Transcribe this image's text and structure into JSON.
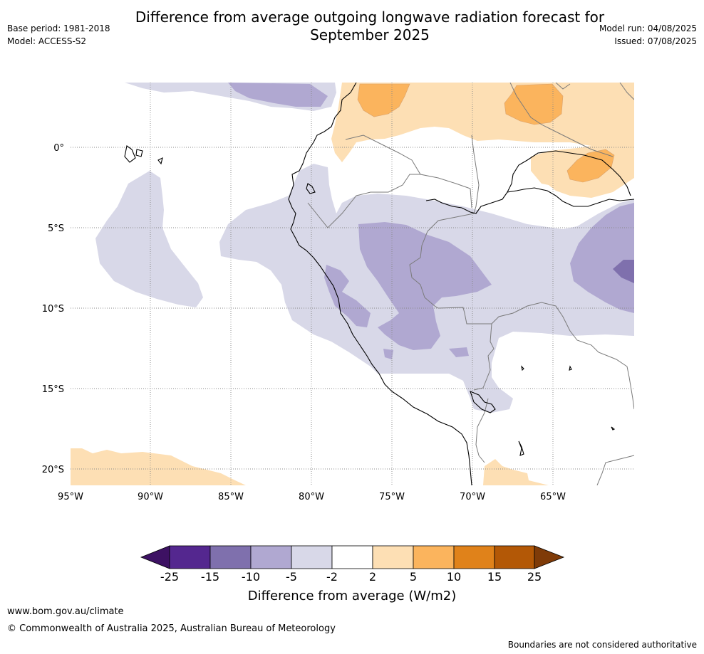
{
  "title_line1": "Difference from average outgoing longwave radiation forecast for",
  "title_line2": "September 2025",
  "base_period": "Base period: 1981-2018",
  "model": "Model: ACCESS-S2",
  "model_run": "Model run: 04/08/2025",
  "issued": "Issued: 07/08/2025",
  "lat_ticks": [
    "0°",
    "5°S",
    "10°S",
    "15°S",
    "20°S"
  ],
  "lon_ticks": [
    "95°W",
    "90°W",
    "85°W",
    "80°W",
    "75°W",
    "70°W",
    "65°W"
  ],
  "colorbar": {
    "ticks": [
      "-25",
      "-15",
      "-10",
      "-5",
      "-2",
      "2",
      "5",
      "10",
      "15",
      "25"
    ],
    "colors": [
      "#3d1163",
      "#54278f",
      "#7f70ad",
      "#b0a8d1",
      "#d8d8e8",
      "#ffffff",
      "#fddfb4",
      "#fbb45d",
      "#e0821a",
      "#b35806",
      "#7f3b08"
    ],
    "label": "Difference from average (W/m2)"
  },
  "footer_url": "www.bom.gov.au/climate",
  "footer_copyright": "© Commonwealth of Australia 2025, Australian Bureau of Meteorology",
  "disclaimer": "Boundaries are not considered authoritative"
}
